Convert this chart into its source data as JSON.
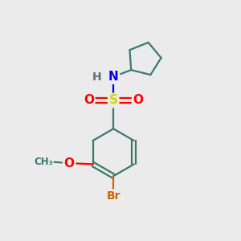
{
  "bg_color": "#ebebeb",
  "bond_color": "#3a7a6a",
  "bond_width": 1.6,
  "atom_colors": {
    "S": "#d4d400",
    "O": "#ff0000",
    "N": "#0000ee",
    "H": "#607070",
    "Br": "#cc6600",
    "C": "#3a7a6a"
  }
}
